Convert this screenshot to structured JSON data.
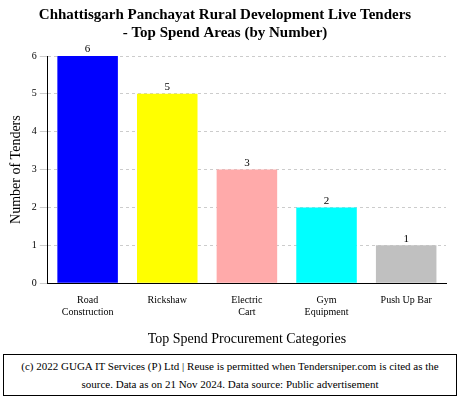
{
  "chart_data": {
    "type": "bar",
    "title": "Chhattisgarh Panchayat Rural Development Live Tenders - Top Spend Areas (by Number)",
    "x_label": "Top Spend Procurement Categories",
    "y_label": "Number of Tenders",
    "categories": [
      "Road Construction",
      "Rickshaw",
      "Electric Cart",
      "Gym Equipment",
      "Push Up Bar"
    ],
    "values": [
      6,
      5,
      3,
      2,
      1
    ],
    "colors": [
      "#0000ff",
      "#ffff00",
      "#ffaaaa",
      "#00ffff",
      "#c0c0c0"
    ],
    "ylim": [
      0,
      6
    ],
    "yticks": [
      0,
      1,
      2,
      3,
      4,
      5,
      6
    ],
    "grid": true,
    "data_labels": true,
    "footer": "(c) 2022 GUGA IT Services (P) Ltd | Reuse is permitted when Tendersniper.com is cited as the source. Data as on 21 Nov 2024. Data source: Public advertisement"
  }
}
